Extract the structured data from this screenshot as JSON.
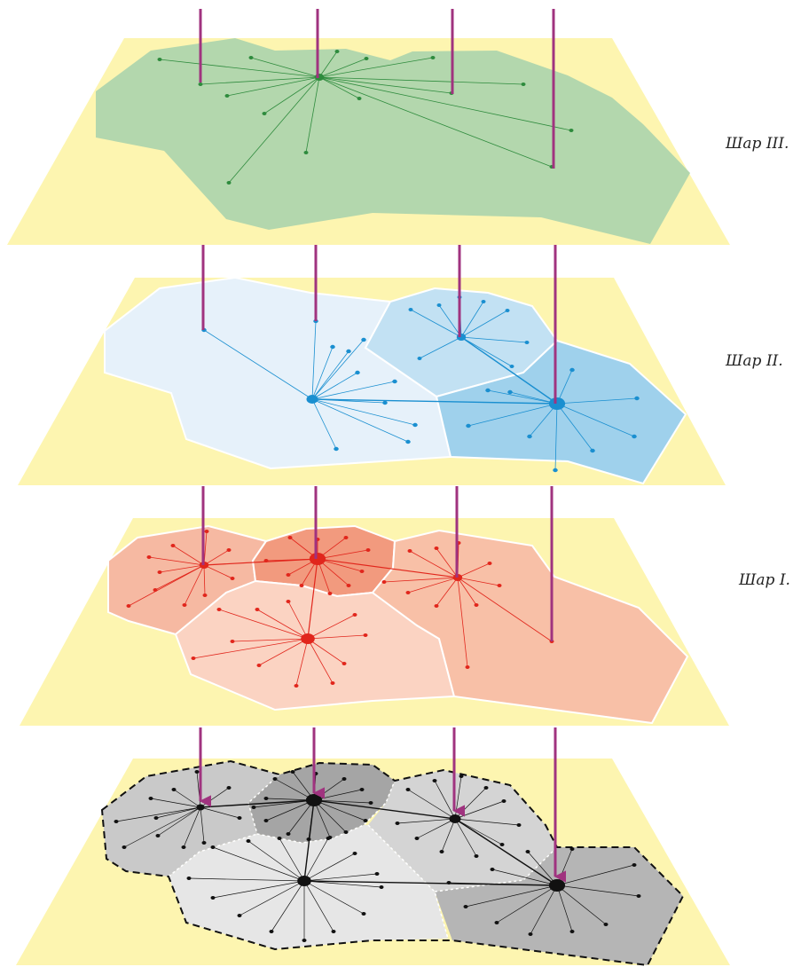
{
  "labels": {
    "layer3": "Шар III.",
    "layer2": "Шар II.",
    "layer1": "Шар I."
  },
  "colors": {
    "plane": "#fdf5b0",
    "layer3_fill": "#b3d7ad",
    "layer3_line": "#2e8b3d",
    "layer2_fill_a": "#e6f1fa",
    "layer2_fill_b": "#c2e1f3",
    "layer2_fill_c": "#9fd1ec",
    "layer2_line": "#1a8fd0",
    "layer1_fill_a": "#f6b9a2",
    "layer1_fill_b": "#f29a7e",
    "layer1_fill_c": "#fbd3c2",
    "layer1_fill_d": "#f8c0a7",
    "layer1_line": "#e1261c",
    "layer0_fill_a": "#c9c9c9",
    "layer0_fill_b": "#a5a5a5",
    "layer0_fill_c": "#d4d4d4",
    "layer0_fill_d": "#e6e6e6",
    "layer0_fill_e": "#b5b5b5",
    "layer0_line": "#111111",
    "connector": "#a0337f"
  },
  "icons": [
    "arrow-down-icon"
  ]
}
